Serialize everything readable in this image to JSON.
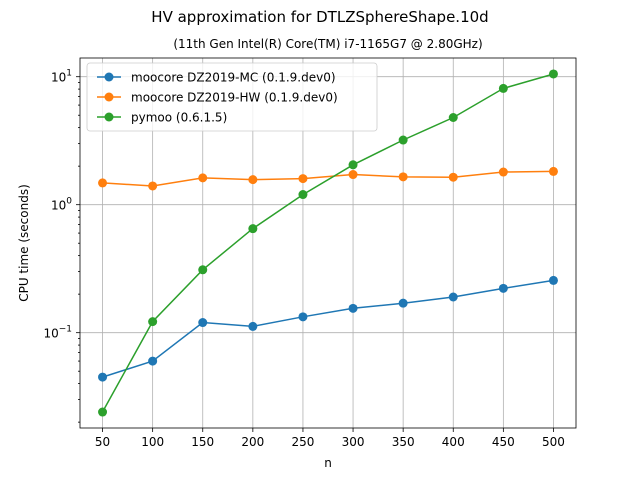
{
  "chart_data": {
    "type": "line",
    "title": "HV approximation for DTLZSphereShape.10d",
    "subtitle": "(11th Gen Intel(R) Core(TM) i7-1165G7 @ 2.80GHz)",
    "xlabel": "n",
    "ylabel": "CPU time (seconds)",
    "yscale": "log",
    "ylim": [
      0.018,
      14
    ],
    "xlim": [
      27.5,
      522.5
    ],
    "x": [
      50,
      100,
      150,
      200,
      250,
      300,
      350,
      400,
      450,
      500
    ],
    "x_tick_labels": [
      "50",
      "100",
      "150",
      "200",
      "250",
      "300",
      "350",
      "400",
      "450",
      "500"
    ],
    "y_ticks": [
      {
        "value": 0.1,
        "base": "10",
        "exp": "−1"
      },
      {
        "value": 1,
        "base": "10",
        "exp": "0"
      },
      {
        "value": 10,
        "base": "10",
        "exp": "1"
      }
    ],
    "grid": true,
    "legend_position": "top-left",
    "series": [
      {
        "name": "moocore DZ2019-MC (0.1.9.dev0)",
        "color": "#1f77b4",
        "values": [
          0.045,
          0.06,
          0.12,
          0.112,
          0.133,
          0.155,
          0.17,
          0.19,
          0.222,
          0.256
        ]
      },
      {
        "name": "moocore DZ2019-HW (0.1.9.dev0)",
        "color": "#ff7f0e",
        "values": [
          1.48,
          1.4,
          1.62,
          1.57,
          1.6,
          1.72,
          1.65,
          1.64,
          1.8,
          1.82
        ]
      },
      {
        "name": "pymoo (0.6.1.5)",
        "color": "#2ca02c",
        "values": [
          0.024,
          0.122,
          0.31,
          0.65,
          1.2,
          2.05,
          3.2,
          4.8,
          8.1,
          10.5
        ]
      }
    ]
  }
}
